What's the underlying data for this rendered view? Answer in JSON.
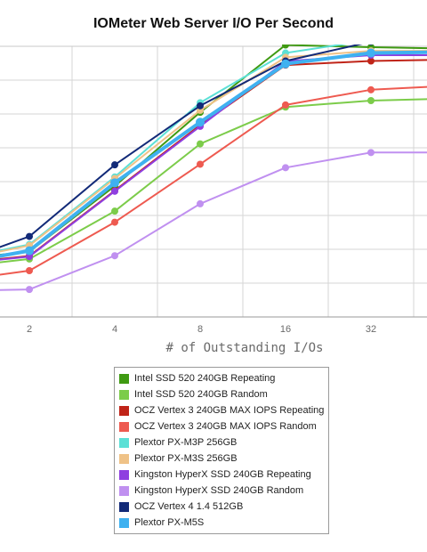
{
  "chart_data": {
    "type": "line",
    "title": "IOMeter Web Server I/O Per Second",
    "xlabel": "# of Outstanding I/Os",
    "ylabel": "",
    "x_scale": "log2",
    "x": [
      1,
      2,
      4,
      8,
      16,
      32,
      64
    ],
    "x_tick_labels": [
      "2",
      "4",
      "8",
      "16",
      "32"
    ],
    "grid": true,
    "legend_position": "bottom",
    "series": [
      {
        "name": "Intel SSD 520 240GB Repeating",
        "color": "#3f9a12",
        "values": [
          0.26,
          0.302,
          0.605,
          0.946,
          1.257,
          1.247,
          1.24
        ]
      },
      {
        "name": "Intel SSD 520 240GB Random",
        "color": "#7ccc4a",
        "values": [
          0.223,
          0.268,
          0.489,
          0.8,
          0.97,
          1.0,
          1.01
        ]
      },
      {
        "name": "OCZ Vertex 3 240GB MAX IOPS Repeating",
        "color": "#c02418",
        "values": [
          0.242,
          0.282,
          0.584,
          0.887,
          1.164,
          1.183,
          1.19
        ]
      },
      {
        "name": "OCZ Vertex 3 240GB MAX IOPS Random",
        "color": "#ee5a50",
        "values": [
          0.16,
          0.214,
          0.438,
          0.706,
          0.98,
          1.05,
          1.07
        ]
      },
      {
        "name": "Plextor PX-M3P 256GB",
        "color": "#5ce0d6",
        "values": [
          0.255,
          0.335,
          0.647,
          0.99,
          1.22,
          1.28,
          1.27
        ]
      },
      {
        "name": "Plextor PX-M3S 256GB",
        "color": "#efc287",
        "values": [
          0.25,
          0.33,
          0.64,
          0.955,
          1.2,
          1.23,
          1.23
        ]
      },
      {
        "name": "Kingston HyperX SSD 240GB Repeating",
        "color": "#8f3fe0",
        "values": [
          0.238,
          0.279,
          0.581,
          0.881,
          1.182,
          1.21,
          1.21
        ]
      },
      {
        "name": "Kingston HyperX SSD 240GB Random",
        "color": "#c090f0",
        "values": [
          0.119,
          0.127,
          0.283,
          0.523,
          0.69,
          0.76,
          0.76
        ]
      },
      {
        "name": "OCZ Vertex 4 1.4 512GB",
        "color": "#122a78",
        "values": [
          0.23,
          0.372,
          0.703,
          0.976,
          1.183,
          1.272,
          1.36
        ]
      },
      {
        "name": "Plextor PX-M5S",
        "color": "#3fb1f0",
        "values": [
          0.235,
          0.306,
          0.62,
          0.9,
          1.17,
          1.22,
          1.225
        ]
      }
    ]
  }
}
